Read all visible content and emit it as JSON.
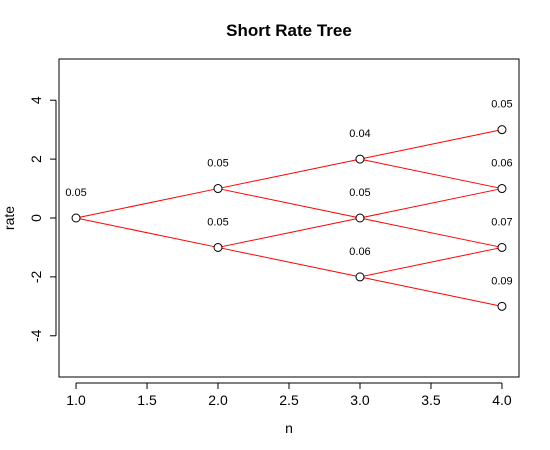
{
  "chart_data": {
    "type": "line",
    "title": "Short Rate Tree",
    "xlabel": "n",
    "ylabel": "rate",
    "xlim": [
      0.88,
      4.12
    ],
    "ylim": [
      -5.4,
      5.4
    ],
    "x_ticks": [
      1.0,
      1.5,
      2.0,
      2.5,
      3.0,
      3.5,
      4.0
    ],
    "x_tick_labels": [
      "1.0",
      "1.5",
      "2.0",
      "2.5",
      "3.0",
      "3.5",
      "4.0"
    ],
    "y_ticks": [
      -4,
      -2,
      0,
      2,
      4
    ],
    "y_tick_labels": [
      "-4",
      "-2",
      "0",
      "2",
      "4"
    ],
    "grid": false,
    "line_color": "#ff0000",
    "marker": "open-circle",
    "nodes": [
      {
        "x": 1,
        "y": 0,
        "label": "0.05"
      },
      {
        "x": 2,
        "y": 1,
        "label": "0.05"
      },
      {
        "x": 2,
        "y": -1,
        "label": "0.05"
      },
      {
        "x": 3,
        "y": 2,
        "label": "0.04"
      },
      {
        "x": 3,
        "y": 0,
        "label": "0.05"
      },
      {
        "x": 3,
        "y": -2,
        "label": "0.06"
      },
      {
        "x": 4,
        "y": 3,
        "label": "0.05"
      },
      {
        "x": 4,
        "y": 1,
        "label": "0.06"
      },
      {
        "x": 4,
        "y": -1,
        "label": "0.07"
      },
      {
        "x": 4,
        "y": -3,
        "label": "0.09"
      }
    ],
    "edges": [
      [
        0,
        1
      ],
      [
        0,
        2
      ],
      [
        1,
        3
      ],
      [
        1,
        4
      ],
      [
        2,
        4
      ],
      [
        2,
        5
      ],
      [
        3,
        6
      ],
      [
        3,
        7
      ],
      [
        4,
        7
      ],
      [
        4,
        8
      ],
      [
        5,
        8
      ],
      [
        5,
        9
      ]
    ]
  }
}
